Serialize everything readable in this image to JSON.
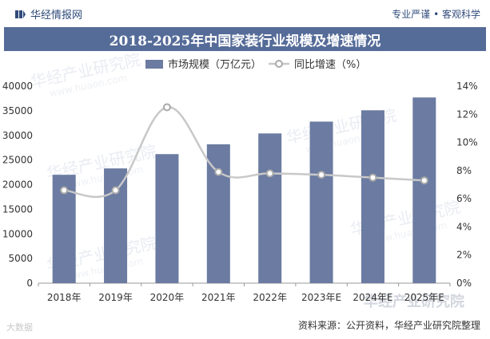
{
  "header": {
    "brand": "华经情报网",
    "slogan": "专业严谨 • 客观科学"
  },
  "source_note": "资料来源：公开资料，华经产业研究院整理",
  "watermarks": [
    "华经产业研究院",
    "www.huaon.com"
  ],
  "chart_data": {
    "type": "bar",
    "title": "2018-2025年中国家装行业规模及增速情况",
    "categories": [
      "2018年",
      "2019年",
      "2020年",
      "2021年",
      "2022年",
      "2023年E",
      "2024年E",
      "2025年E"
    ],
    "series": [
      {
        "name": "市场规模（万亿元）",
        "type": "bar",
        "axis": "left",
        "color": "#6b7ba1",
        "values": [
          22000,
          23300,
          26200,
          28200,
          30400,
          32800,
          35100,
          37700
        ]
      },
      {
        "name": "同比增速（%）",
        "type": "line",
        "axis": "right",
        "color": "#c8c8c8",
        "values": [
          6.6,
          6.6,
          12.5,
          7.9,
          7.8,
          7.7,
          7.5,
          7.3
        ]
      }
    ],
    "y_left": {
      "min": 0,
      "max": 40000,
      "step": 5000,
      "ticks": [
        "0",
        "5000",
        "10000",
        "15000",
        "20000",
        "25000",
        "30000",
        "35000",
        "40000"
      ]
    },
    "y_right": {
      "min": 0,
      "max": 14,
      "step": 2,
      "ticks": [
        "0%",
        "2%",
        "4%",
        "6%",
        "8%",
        "10%",
        "12%",
        "14%"
      ]
    },
    "legend_position": "top-center",
    "grid": false
  }
}
